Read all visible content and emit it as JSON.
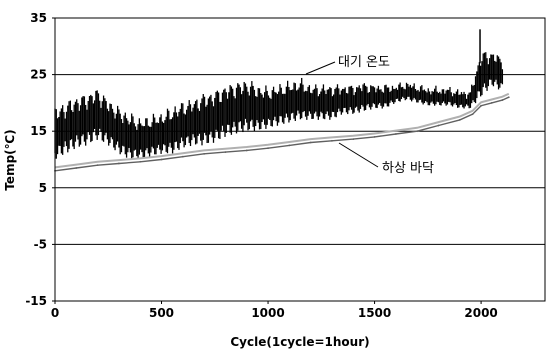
{
  "chart_data": {
    "type": "scatter",
    "title": "",
    "xlabel": "Cycle(1cycle=1hour)",
    "ylabel": "Temp(℃)",
    "xlim": [
      0,
      2300
    ],
    "ylim": [
      -15,
      35
    ],
    "xticks": [
      "0",
      "500",
      "1000",
      "1500",
      "2000"
    ],
    "yticks": [
      "35",
      "25",
      "15",
      "5",
      "-5",
      "-15"
    ],
    "grid": "horizontal",
    "annotations": [
      {
        "text": "대기 온도",
        "series": "air"
      },
      {
        "text": "하상 바닥",
        "series": "bed"
      }
    ],
    "series": [
      {
        "key": "air",
        "color": "#000000",
        "x": [
          0,
          50,
          100,
          150,
          200,
          250,
          300,
          350,
          400,
          450,
          500,
          550,
          600,
          650,
          700,
          750,
          800,
          850,
          900,
          950,
          1000,
          1050,
          1100,
          1150,
          1200,
          1250,
          1300,
          1350,
          1400,
          1450,
          1500,
          1550,
          1600,
          1650,
          1700,
          1750,
          1800,
          1850,
          1900,
          1950,
          2000,
          2050,
          2100
        ],
        "mean": [
          14.5,
          15.5,
          16.5,
          17,
          18,
          16.5,
          15,
          14,
          13.5,
          14,
          14.5,
          15,
          16,
          16.5,
          17,
          17.5,
          18.5,
          19,
          19.5,
          19,
          19,
          19.5,
          20,
          20.5,
          20,
          20,
          20,
          20.5,
          20.5,
          21,
          21,
          21,
          21.5,
          22,
          21.5,
          21,
          21,
          21,
          20.5,
          20.5,
          25,
          26,
          25
        ],
        "amplitude": [
          4.5,
          4.5,
          4.5,
          4.5,
          4.5,
          4,
          4,
          4,
          3.5,
          3.5,
          3.5,
          4,
          4,
          4,
          4.5,
          4.5,
          4.5,
          4.5,
          4.5,
          4,
          3.5,
          3.5,
          3.5,
          3.5,
          3,
          3,
          3,
          2.5,
          2.5,
          2.5,
          2,
          2,
          1.5,
          1.5,
          1.5,
          1.5,
          1.5,
          1.5,
          1.5,
          1.5,
          4,
          3,
          3
        ]
      },
      {
        "key": "bed",
        "color": "#606060",
        "x": [
          0,
          100,
          200,
          300,
          400,
          500,
          600,
          700,
          800,
          900,
          1000,
          1100,
          1200,
          1300,
          1400,
          1500,
          1600,
          1700,
          1800,
          1900,
          1960,
          2000,
          2050,
          2100,
          2130
        ],
        "y": [
          8,
          8.5,
          9,
          9.3,
          9.6,
          10,
          10.5,
          11,
          11.3,
          11.6,
          12,
          12.5,
          13,
          13.3,
          13.6,
          14,
          14.5,
          15,
          16,
          17,
          18,
          19.5,
          20,
          20.5,
          21
        ]
      }
    ]
  }
}
